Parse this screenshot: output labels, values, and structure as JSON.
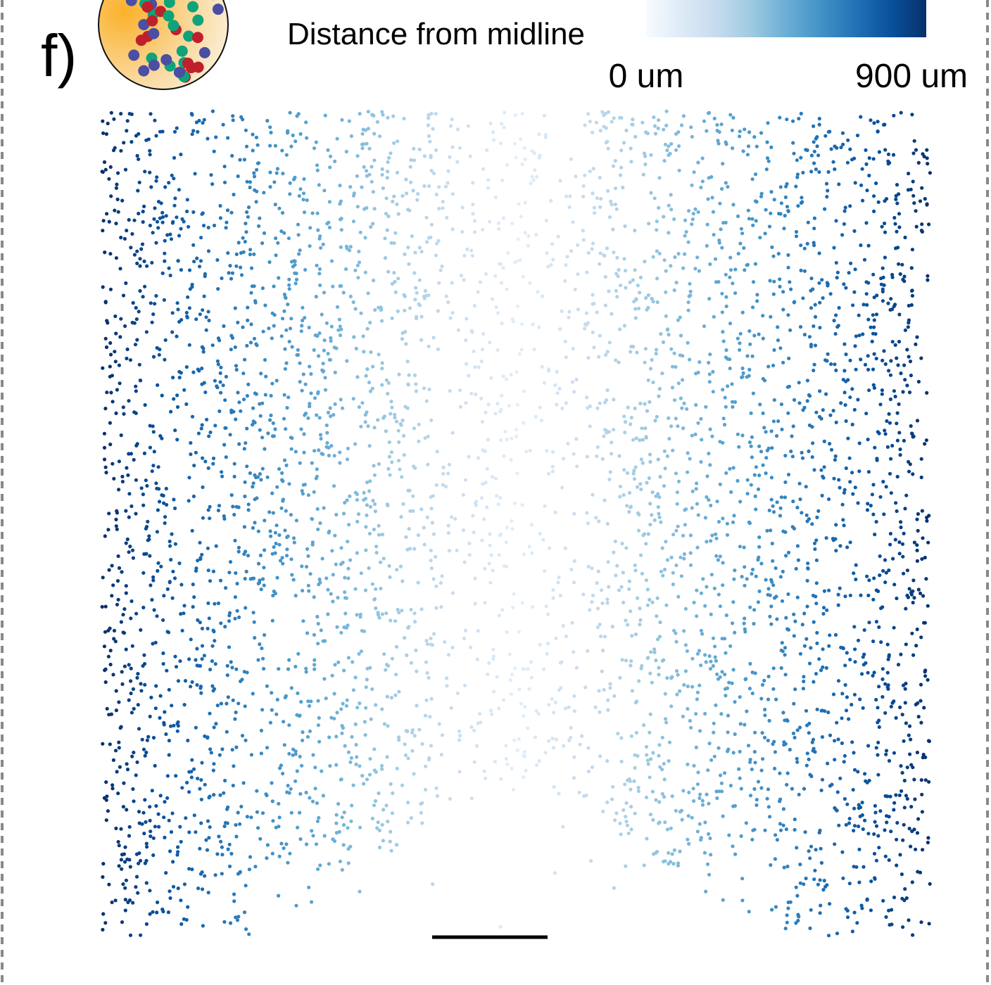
{
  "panel_label": "f)",
  "colorbar": {
    "title": "Distance from midline",
    "range": [
      0,
      900
    ],
    "ticks": [
      {
        "value": 0,
        "label": "0 um"
      },
      {
        "value": 900,
        "label": "900 um"
      }
    ]
  }
}
